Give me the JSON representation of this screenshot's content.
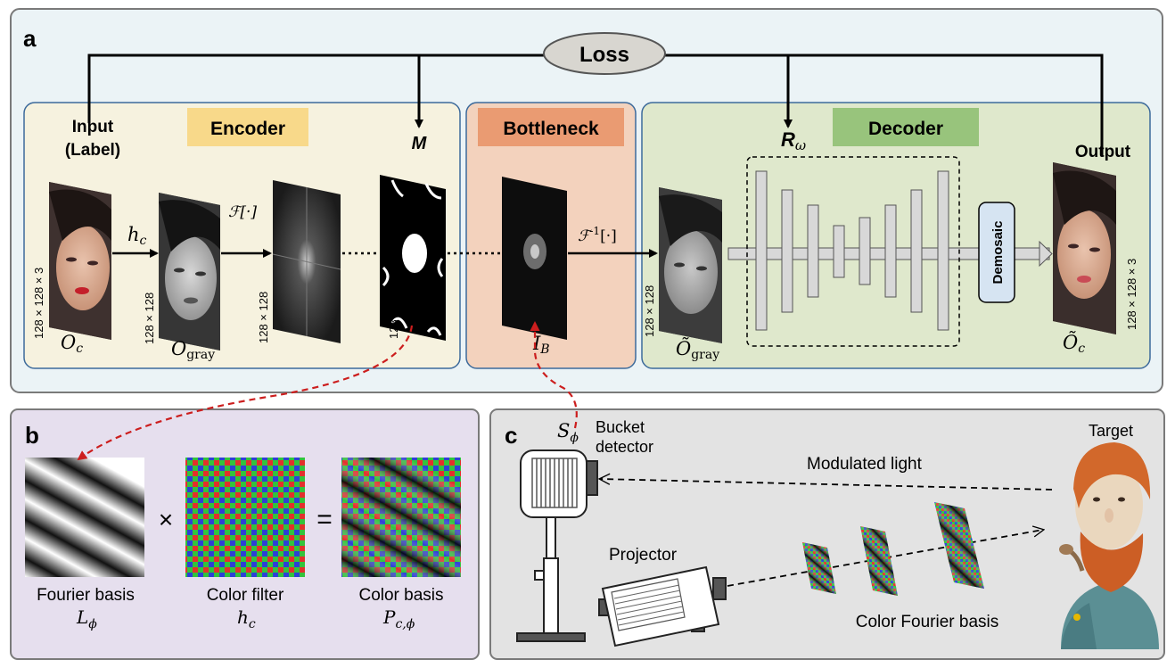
{
  "panel_a": {
    "letter": "a",
    "loss": "Loss",
    "input_line1": "Input",
    "input_line2": "(Label)",
    "encoder": "Encoder",
    "bottleneck": "Bottleneck",
    "decoder": "Decoder",
    "output": "Output",
    "m_label": "M",
    "r_main": "R",
    "r_sub": "ω",
    "hc_main": "h",
    "hc_sub": "c",
    "fourier": "ℱ[·]",
    "inv_fourier_pre": "ℱ",
    "inv_fourier_sup": "-1",
    "inv_fourier_post": "[·]",
    "dim_rgb": "128 × 128 × 3",
    "dim_gray": "128 × 128",
    "oc_main": "O",
    "oc_sub": "c",
    "ogray_main": "O",
    "ogray_sub": "gray",
    "ib_main": "I",
    "ib_sub": "B",
    "otgray_main": "Õ",
    "otgray_sub": "gray",
    "otc_main": "Õ",
    "otc_sub": "c",
    "demosaic": "Demosaic"
  },
  "panel_b": {
    "letter": "b",
    "times": "×",
    "equals": "=",
    "fourier_basis": "Fourier basis",
    "l_main": "L",
    "l_sub": "ϕ",
    "color_filter": "Color filter",
    "h_main": "h",
    "h_sub": "c",
    "color_basis": "Color basis",
    "p_main": "P",
    "p_sub": "c,ϕ"
  },
  "panel_c": {
    "letter": "c",
    "s_main": "S",
    "s_sub": "ϕ",
    "bucket_line1": "Bucket",
    "bucket_line2": "detector",
    "target": "Target",
    "modulated_light": "Modulated light",
    "projector": "Projector",
    "color_fourier_basis": "Color Fourier basis"
  },
  "colors": {
    "panel_a_bg": "#ebf3f6",
    "encoder_bg": "#f6f2df",
    "bottleneck_bg": "#f3d2bd",
    "decoder_bg": "#dfe8cc",
    "encoder_tag": "#f8d98a",
    "bottleneck_tag": "#ea9b72",
    "decoder_tag": "#98c47c",
    "panel_b_bg": "#e6dfee",
    "panel_c_bg": "#e3e3e3",
    "loss_fill": "#d8d6d0",
    "dashed_red": "#cc1e1e"
  }
}
